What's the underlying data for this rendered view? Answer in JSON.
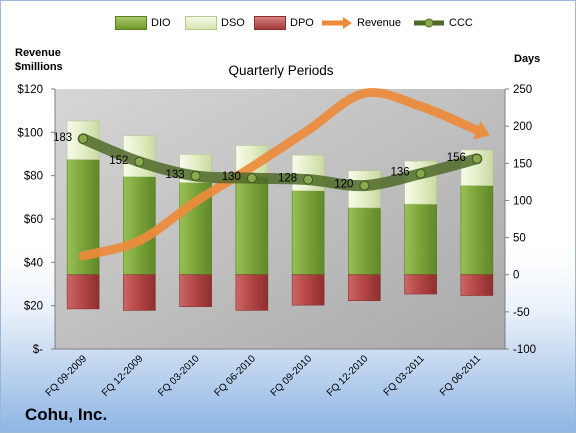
{
  "header": {
    "left_axis_title": "Revenue $millions",
    "right_axis_title": "Days",
    "plot_title": "Quarterly Periods"
  },
  "legend": {
    "dio": "DIO",
    "dso": "DSO",
    "dpo": "DPO",
    "revenue": "Revenue",
    "ccc": "CCC"
  },
  "footer": {
    "company": "Cohu, Inc."
  },
  "colors": {
    "dio": "#7ba23a",
    "dso": "#e4efc8",
    "dpo": "#b84a4a",
    "revenue": "#ed8b3b",
    "ccc": "#4f6a28",
    "plot_bg": "#bfbfbf"
  },
  "chart_data": {
    "type": "bar",
    "stacked": true,
    "categories": [
      "FQ 09-2009",
      "FQ 12-2009",
      "FQ 03-2010",
      "FQ 06-2010",
      "FQ 09-2010",
      "FQ 12-2010",
      "FQ 03-2011",
      "FQ 06-2011"
    ],
    "series": [
      {
        "name": "DIO",
        "axis": "right",
        "values": [
          155,
          132,
          124,
          132,
          113,
          90,
          95,
          120
        ]
      },
      {
        "name": "DSO",
        "axis": "right",
        "values": [
          52,
          55,
          38,
          42,
          48,
          50,
          58,
          48
        ]
      },
      {
        "name": "DPO",
        "axis": "right",
        "values": [
          -46,
          -48,
          -43,
          -48,
          -41,
          -35,
          -26,
          -28
        ]
      },
      {
        "name": "Revenue",
        "type": "line",
        "axis": "left",
        "values": [
          43,
          50,
          68,
          84,
          101,
          118,
          112,
          101
        ]
      },
      {
        "name": "CCC",
        "type": "line",
        "axis": "right",
        "values": [
          183,
          152,
          133,
          130,
          128,
          120,
          136,
          156
        ]
      }
    ],
    "ccc_labels": [
      "183",
      "152",
      "133",
      "130",
      "128",
      "120",
      "136",
      "156"
    ],
    "left_axis": {
      "label": "Revenue $millions",
      "ylim": [
        0,
        120
      ],
      "tick_labels": [
        "$-",
        "$20",
        "$40",
        "$60",
        "$80",
        "$100",
        "$120"
      ]
    },
    "right_axis": {
      "label": "Days",
      "ylim": [
        -100,
        250
      ],
      "tick_labels": [
        "-100",
        "-50",
        "0",
        "50",
        "100",
        "150",
        "200",
        "250"
      ]
    },
    "legend_position": "top",
    "grid": false
  }
}
